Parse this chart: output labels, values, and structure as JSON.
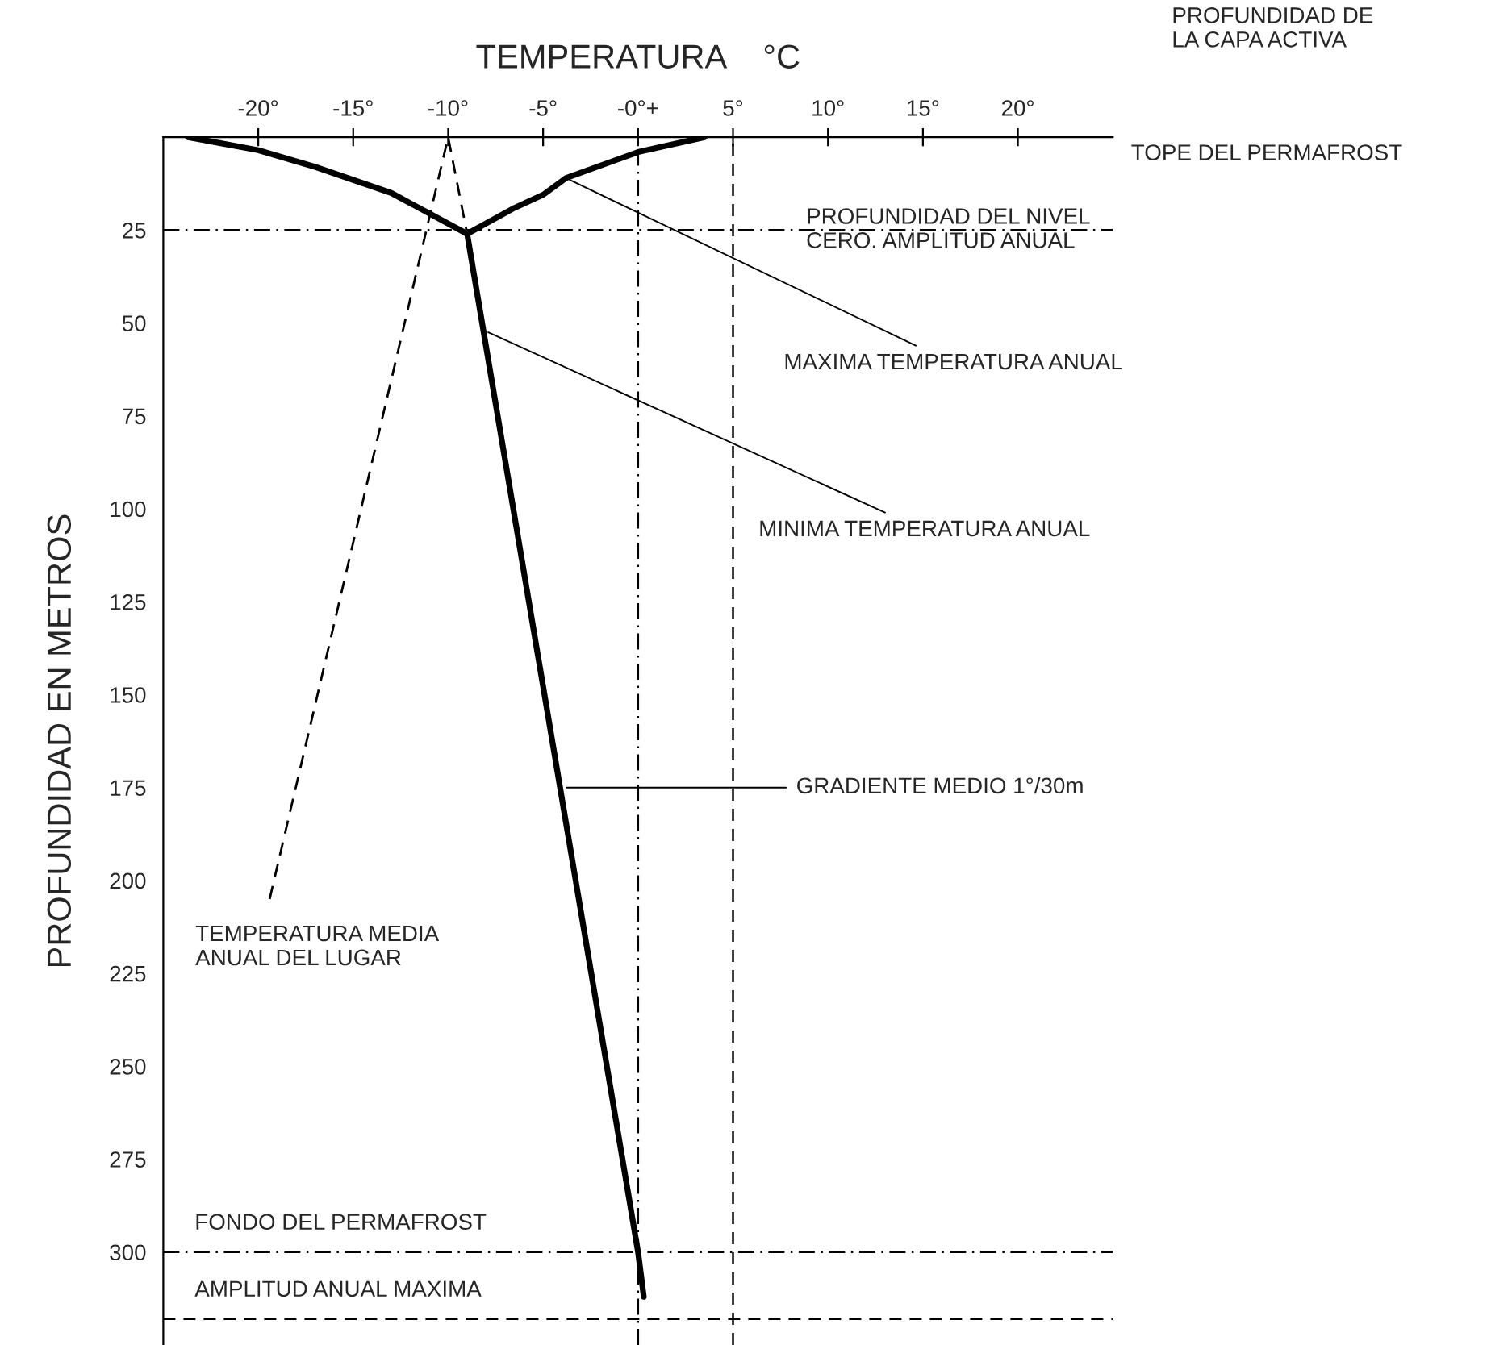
{
  "chart_data": {
    "type": "line",
    "xlabel": "TEMPERATURA    °C",
    "ylabel": "PROFUNDIDAD EN METROS",
    "xlim": [
      -25,
      25
    ],
    "ylim": [
      325,
      0
    ],
    "xticks": [
      {
        "value": -20,
        "label": "-20°"
      },
      {
        "value": -15,
        "label": "-15°"
      },
      {
        "value": -10,
        "label": "-10°"
      },
      {
        "value": -5,
        "label": "-5°"
      },
      {
        "value": 0,
        "label": "-0°+"
      },
      {
        "value": 5,
        "label": "5°"
      },
      {
        "value": 10,
        "label": "10°"
      },
      {
        "value": 15,
        "label": "15°"
      },
      {
        "value": 20,
        "label": "20°"
      }
    ],
    "yticks": [
      25,
      50,
      75,
      100,
      125,
      150,
      175,
      200,
      225,
      250,
      275,
      300
    ],
    "grid": false,
    "legend": false,
    "marker": "none",
    "series": [
      {
        "color": "#000000",
        "line_style": "solid",
        "x": [
          -23.7,
          -20,
          -17,
          -13,
          -9
        ],
        "values": [
          0,
          3.5,
          8,
          15,
          26
        ]
      },
      {
        "color": "#000000",
        "line_style": "solid",
        "x": [
          -9,
          -6.5,
          -5,
          -3.8,
          0,
          3.5
        ],
        "values": [
          26,
          19,
          15.5,
          11,
          4,
          0
        ]
      },
      {
        "color": "#000000",
        "line_style": "solid",
        "x": [
          -9,
          0,
          0.3
        ],
        "values": [
          26,
          300,
          312
        ]
      },
      {
        "color": "#000000",
        "line_style": "dashed",
        "x": [
          -19.4,
          -10,
          -9
        ],
        "values": [
          205,
          0,
          26
        ]
      }
    ],
    "ref_lines": [
      {
        "axis": "x",
        "value": 0,
        "line_style": "dotted",
        "color": "#000000"
      },
      {
        "axis": "x",
        "value": 5,
        "line_style": "dashed",
        "color": "#000000"
      },
      {
        "axis": "y",
        "value": 25,
        "line_style": "dotted",
        "color": "#000000"
      },
      {
        "axis": "y",
        "value": 300,
        "label": "FONDO DEL PERMAFROST",
        "line_style": "dotted",
        "color": "#000000"
      },
      {
        "axis": "y",
        "value": 318,
        "label": "AMPLITUD ANUAL MAXIMA",
        "line_style": "dashed",
        "color": "#000000"
      }
    ],
    "annotations": [
      "PROFUNDIDAD DE\nLA CAPA ACTIVA",
      "TOPE DEL PERMAFROST",
      {
        "text": "PROFUNDIDAD DEL NIVEL\nCERO. AMPLITUD ANUAL",
        "x": 8,
        "y": 25
      },
      {
        "text": "MAXIMA TEMPERATURA ANUAL",
        "x": -3.8,
        "y": 11
      },
      {
        "text": "MINIMA TEMPERATURA ANUAL",
        "x": -8.1,
        "y": 52
      },
      {
        "text": "GRADIENTE MEDIO 1°/30m",
        "x": -4,
        "y": 175
      },
      {
        "text": "TEMPERATURA MEDIA\nANUAL DEL LUGAR",
        "x": -19.4,
        "y": 205
      }
    ]
  }
}
